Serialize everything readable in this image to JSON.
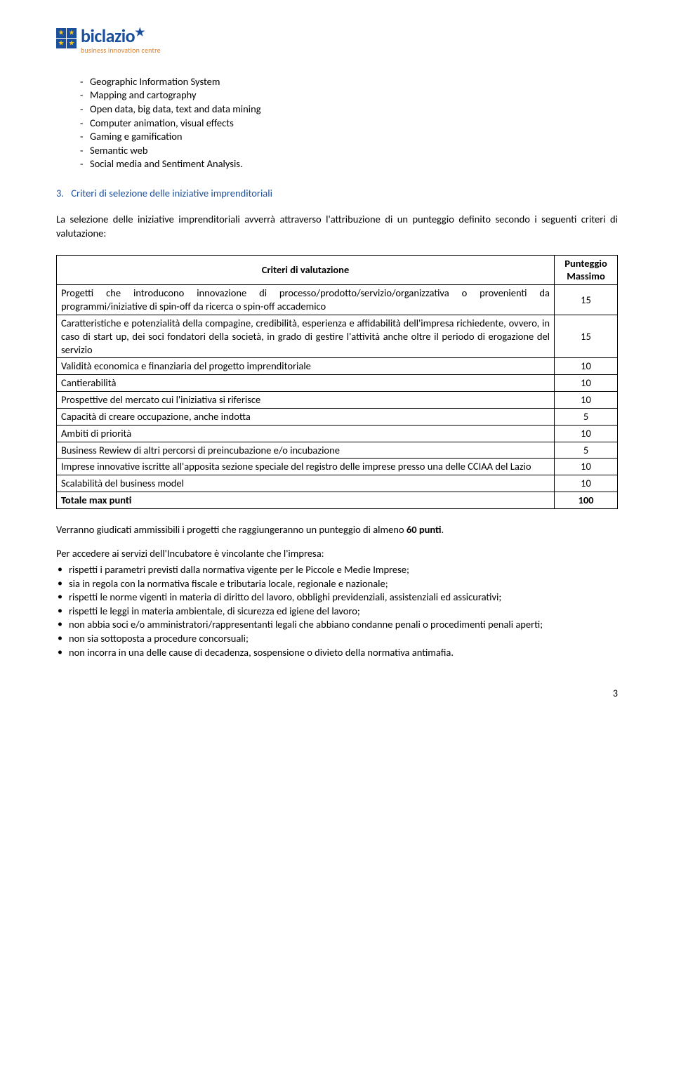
{
  "logo": {
    "brand": "biclazio",
    "tagline": "business innovation centre"
  },
  "top_bullets": [
    "Geographic Information System",
    "Mapping and cartography",
    "Open data, big data, text and data mining",
    "Computer animation, visual effects",
    "Gaming e gamification",
    "Semantic web",
    "Social media and Sentiment Analysis."
  ],
  "section": {
    "number": "3.",
    "title": "Criteri di selezione delle iniziative imprenditoriali"
  },
  "intro_paragraph": "La selezione delle iniziative imprenditoriali avverrà attraverso l'attribuzione di un punteggio definito secondo i seguenti criteri di valutazione:",
  "table": {
    "header_left": "Criteri di valutazione",
    "header_right_line1": "Punteggio",
    "header_right_line2": "Massimo",
    "rows": [
      {
        "c": "Progetti che introducono innovazione di processo/prodotto/servizio/organizzativa o provenienti da programmi/iniziative di spin-off da ricerca o spin-off accademico",
        "v": "15"
      },
      {
        "c": "Caratteristiche e potenzialità della compagine, credibilità, esperienza e affidabilità dell'impresa richiedente, ovvero, in caso di start up, dei soci fondatori della società, in grado di gestire l'attività anche oltre il periodo di erogazione del servizio",
        "v": "15"
      },
      {
        "c": "Validità economica e finanziaria del progetto imprenditoriale",
        "v": "10"
      },
      {
        "c": "Cantierabilità",
        "v": "10"
      },
      {
        "c": "Prospettive del mercato cui l'iniziativa si riferisce",
        "v": "10"
      },
      {
        "c": "Capacità di creare occupazione, anche indotta",
        "v": "5"
      },
      {
        "c": "Ambiti di priorità",
        "v": "10"
      },
      {
        "c": "Business Rewiew di altri percorsi di preincubazione e/o incubazione",
        "v": "5"
      },
      {
        "c": "Imprese innovative iscritte all'apposita sezione speciale del registro delle imprese presso una delle CCIAA del Lazio",
        "v": "10"
      },
      {
        "c": "Scalabilità del business model",
        "v": "10"
      }
    ],
    "total_label": "Totale max punti",
    "total_value": "100"
  },
  "after_table_para": "Verranno giudicati ammissibili i progetti che raggiungeranno un punteggio di almeno 60 punti.",
  "req_intro": "Per accedere ai servizi dell'Incubatore è vincolante che l'impresa:",
  "requirements": [
    "rispetti i parametri previsti dalla normativa vigente per le Piccole e Medie Imprese;",
    "sia in regola con la normativa fiscale e tributaria locale, regionale e nazionale;",
    "rispetti le norme vigenti in materia di diritto del lavoro, obblighi previdenziali, assistenziali ed assicurativi;",
    "rispetti le leggi in materia ambientale, di sicurezza ed igiene del lavoro;",
    "non abbia soci e/o amministratori/rappresentanti legali che abbiano condanne penali o procedimenti penali aperti;",
    "non sia sottoposta a procedure concorsuali;",
    "non incorra in una delle cause di decadenza, sospensione o divieto della normativa antimafia."
  ],
  "page_number": "3"
}
